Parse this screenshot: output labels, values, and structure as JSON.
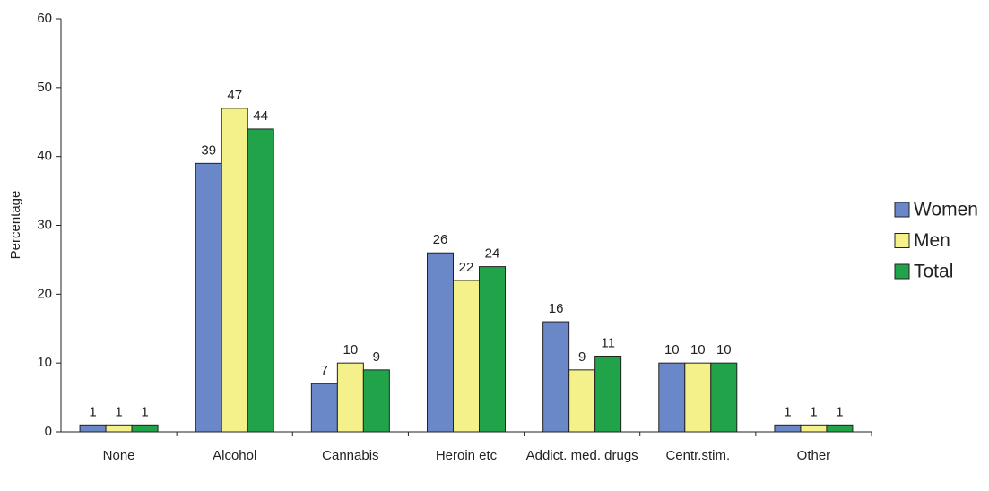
{
  "chart_data": {
    "type": "bar",
    "y_label": "Percentage",
    "categories": [
      "None",
      "Alcohol",
      "Cannabis",
      "Heroin etc",
      "Addict. med. drugs",
      "Centr.stim.",
      "Other"
    ],
    "series": [
      {
        "name": "Women",
        "color": "#6a87c8",
        "values": [
          1,
          39,
          7,
          26,
          16,
          10,
          1
        ]
      },
      {
        "name": "Men",
        "color": "#f5f18a",
        "values": [
          1,
          47,
          10,
          22,
          9,
          10,
          1
        ]
      },
      {
        "name": "Total",
        "color": "#21a349",
        "values": [
          1,
          44,
          9,
          24,
          11,
          10,
          1
        ]
      }
    ],
    "ylim": [
      0,
      60
    ],
    "yticks": [
      0,
      10,
      20,
      30,
      40,
      50,
      60
    ],
    "grid": false,
    "legend": "right"
  }
}
